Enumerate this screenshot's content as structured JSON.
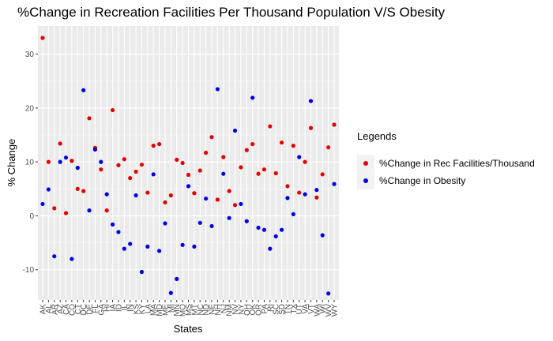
{
  "chart_data": {
    "type": "scatter",
    "title": "%Change in Recreation Facilities Per Thousand Population V/S Obesity",
    "xlabel": "States",
    "ylabel": "% Change",
    "yticks": [
      -10,
      0,
      10,
      20,
      30
    ],
    "ylim": [
      -15.6,
      35.2
    ],
    "grid": true,
    "legend_position": "right",
    "legend_title": "Legends",
    "categories": [
      "AK",
      "AL",
      "AR",
      "AZ",
      "CA",
      "CO",
      "CT",
      "DC",
      "DE",
      "FL",
      "GA",
      "HI",
      "IA",
      "ID",
      "IL",
      "IN",
      "KS",
      "KY",
      "LA",
      "MA",
      "MD",
      "ME",
      "MI",
      "MN",
      "MO",
      "MS",
      "MT",
      "NC",
      "ND",
      "NE",
      "NH",
      "NJ",
      "NM",
      "NV",
      "NY",
      "OH",
      "OK",
      "OR",
      "PA",
      "RI",
      "SC",
      "SD",
      "TN",
      "TX",
      "UT",
      "VA",
      "VT",
      "WA",
      "WI",
      "WV",
      "WY"
    ],
    "series": [
      {
        "name": "%Change in Rec Facilities/Thousand",
        "color": "#e00000",
        "values": [
          33,
          10,
          1.4,
          13.4,
          0.5,
          10.2,
          5,
          4.6,
          18.1,
          12.6,
          8.6,
          1,
          19.6,
          9.4,
          10.5,
          7,
          8.2,
          9.5,
          4.3,
          13,
          13.3,
          2.5,
          3.8,
          10.4,
          9.8,
          7.6,
          4.2,
          8.4,
          11.7,
          14.6,
          3,
          10.9,
          4.6,
          2,
          9,
          12.2,
          13.3,
          7.8,
          8.6,
          16.6,
          7.9,
          13.6,
          5.5,
          13,
          4.3,
          10,
          16.3,
          3.4,
          7.7,
          12.7,
          16.9
        ]
      },
      {
        "name": "%Change in Obesity",
        "color": "#0000e0",
        "values": [
          2.2,
          4.9,
          -7.5,
          10,
          10.8,
          -8,
          8.9,
          23.3,
          1,
          12.3,
          10,
          4,
          -1.6,
          -3,
          -6.1,
          -5.2,
          3.8,
          -10.4,
          -5.7,
          7.7,
          -6.5,
          -1.4,
          -14.3,
          -11.7,
          -5.4,
          5.5,
          -5.7,
          -1.3,
          3.2,
          -1.9,
          23.5,
          7.8,
          -0.4,
          15.8,
          2.2,
          -1,
          21.9,
          -2.2,
          -2.6,
          -6.1,
          -3.8,
          -2.6,
          3.3,
          0.3,
          10.9,
          4,
          21.3,
          4.8,
          -3.6,
          -14.4,
          5.9
        ]
      }
    ]
  }
}
